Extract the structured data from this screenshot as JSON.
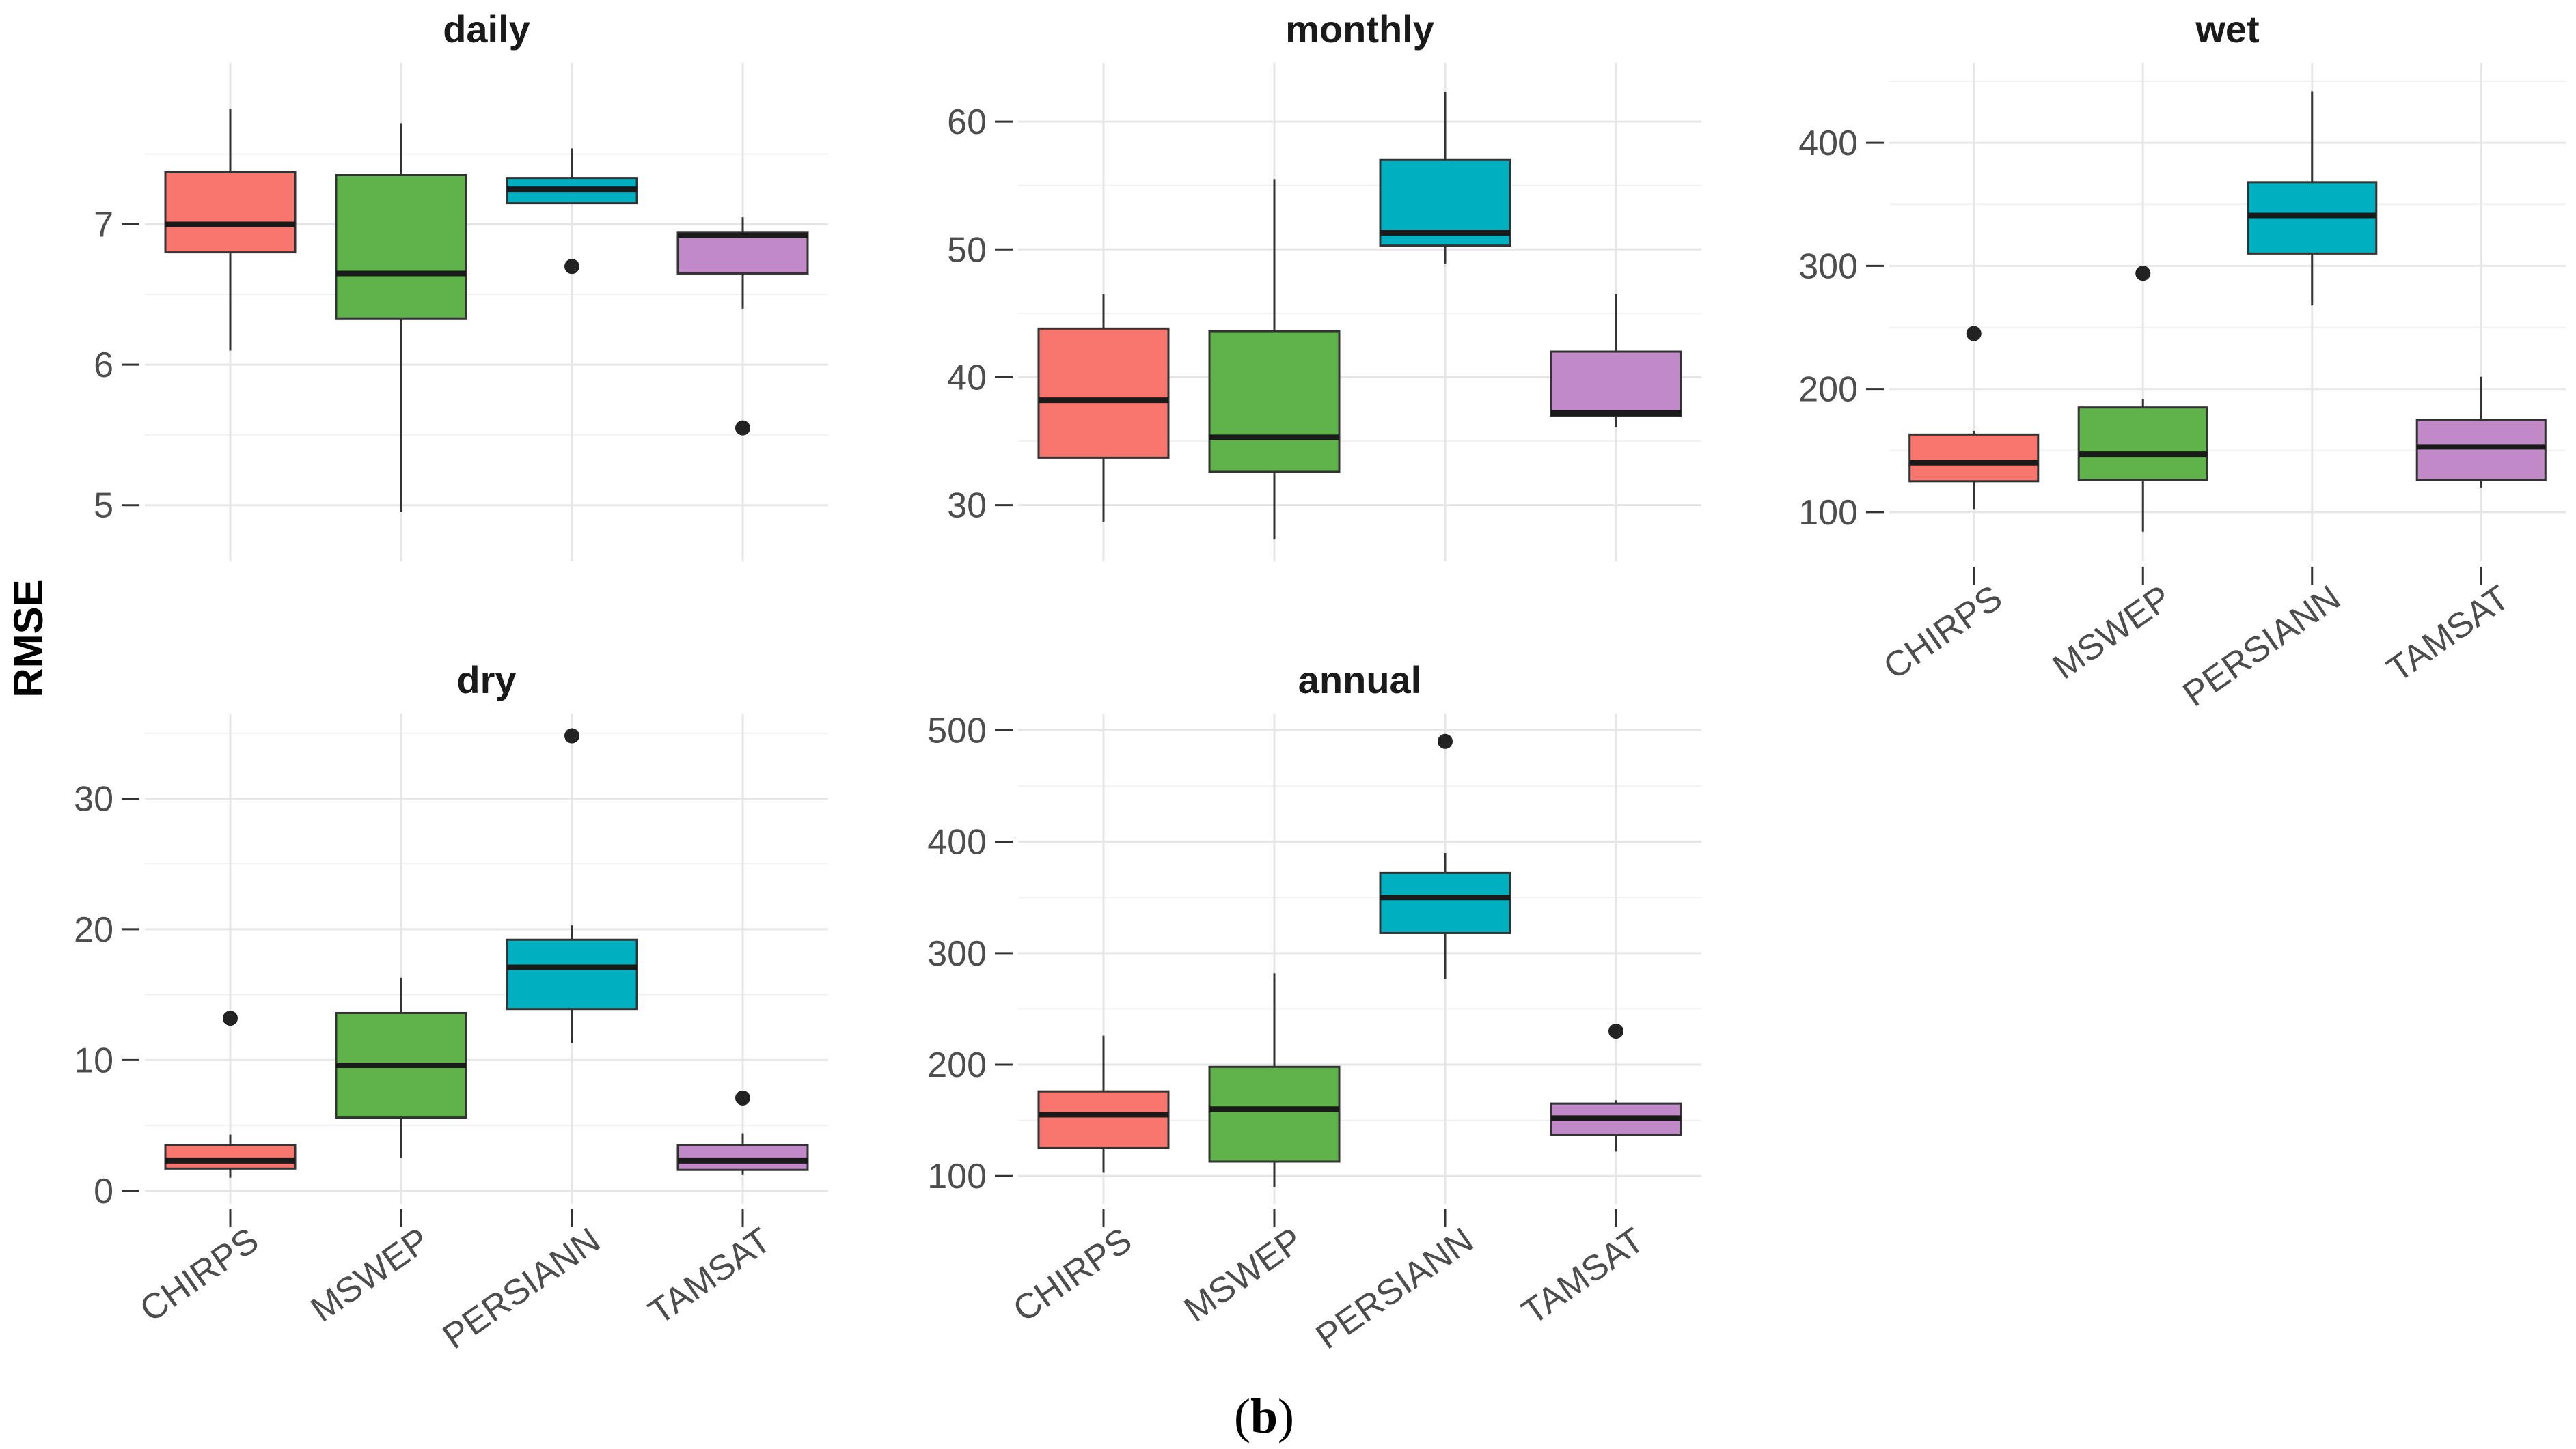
{
  "ylabel": "RMSE",
  "caption": {
    "open": "(",
    "letter": "b",
    "close": ")"
  },
  "chart_data": [
    {
      "type": "boxplot",
      "title": "daily",
      "categories": [
        "CHIRPS",
        "MSWEP",
        "PERSIANN",
        "TAMSAT"
      ],
      "colors": [
        "#F8766D",
        "#5FB34A",
        "#00B0C0",
        "#C189C8"
      ],
      "yticks": [
        5,
        6,
        7
      ],
      "ylim": [
        4.6,
        8.15
      ],
      "show_x_labels": false,
      "boxes": [
        {
          "min": 6.1,
          "q1": 6.8,
          "median": 7.0,
          "q3": 7.37,
          "max": 7.82,
          "outliers": []
        },
        {
          "min": 4.95,
          "q1": 6.33,
          "median": 6.65,
          "q3": 7.35,
          "max": 7.72,
          "outliers": []
        },
        {
          "min": 7.15,
          "q1": 7.15,
          "median": 7.25,
          "q3": 7.33,
          "max": 7.54,
          "outliers": [
            6.7
          ]
        },
        {
          "min": 6.4,
          "q1": 6.65,
          "median": 6.92,
          "q3": 6.94,
          "max": 7.05,
          "outliers": [
            5.55
          ]
        }
      ]
    },
    {
      "type": "boxplot",
      "title": "monthly",
      "categories": [
        "CHIRPS",
        "MSWEP",
        "PERSIANN",
        "TAMSAT"
      ],
      "colors": [
        "#F8766D",
        "#5FB34A",
        "#00B0C0",
        "#C189C8"
      ],
      "yticks": [
        30,
        40,
        50,
        60
      ],
      "ylim": [
        25.6,
        64.6
      ],
      "show_x_labels": false,
      "boxes": [
        {
          "min": 28.7,
          "q1": 33.7,
          "median": 38.2,
          "q3": 43.8,
          "max": 46.5,
          "outliers": []
        },
        {
          "min": 27.3,
          "q1": 32.6,
          "median": 35.3,
          "q3": 43.6,
          "max": 55.5,
          "outliers": []
        },
        {
          "min": 48.9,
          "q1": 50.3,
          "median": 51.3,
          "q3": 57.0,
          "max": 62.3,
          "outliers": []
        },
        {
          "min": 36.1,
          "q1": 37.0,
          "median": 37.2,
          "q3": 42.0,
          "max": 46.5,
          "outliers": []
        }
      ]
    },
    {
      "type": "boxplot",
      "title": "wet",
      "categories": [
        "CHIRPS",
        "MSWEP",
        "PERSIANN",
        "TAMSAT"
      ],
      "colors": [
        "#F8766D",
        "#5FB34A",
        "#00B0C0",
        "#C189C8"
      ],
      "yticks": [
        100,
        200,
        300,
        400
      ],
      "ylim": [
        60,
        465
      ],
      "show_x_labels": true,
      "boxes": [
        {
          "min": 102,
          "q1": 125,
          "median": 140,
          "q3": 163,
          "max": 166,
          "outliers": [
            245
          ]
        },
        {
          "min": 84,
          "q1": 126,
          "median": 147,
          "q3": 185,
          "max": 192,
          "outliers": [
            294
          ]
        },
        {
          "min": 268,
          "q1": 310,
          "median": 341,
          "q3": 368,
          "max": 442,
          "outliers": []
        },
        {
          "min": 120,
          "q1": 126,
          "median": 153,
          "q3": 175,
          "max": 210,
          "outliers": []
        }
      ]
    },
    {
      "type": "boxplot",
      "title": "dry",
      "categories": [
        "CHIRPS",
        "MSWEP",
        "PERSIANN",
        "TAMSAT"
      ],
      "colors": [
        "#F8766D",
        "#5FB34A",
        "#00B0C0",
        "#C189C8"
      ],
      "yticks": [
        0,
        10,
        20,
        30
      ],
      "ylim": [
        -1.0,
        36.5
      ],
      "show_x_labels": true,
      "boxes": [
        {
          "min": 1.0,
          "q1": 1.7,
          "median": 2.3,
          "q3": 3.5,
          "max": 4.3,
          "outliers": [
            13.2
          ]
        },
        {
          "min": 2.5,
          "q1": 5.6,
          "median": 9.6,
          "q3": 13.6,
          "max": 16.3,
          "outliers": []
        },
        {
          "min": 11.3,
          "q1": 13.9,
          "median": 17.1,
          "q3": 19.2,
          "max": 20.3,
          "outliers": [
            34.8
          ]
        },
        {
          "min": 1.2,
          "q1": 1.6,
          "median": 2.3,
          "q3": 3.5,
          "max": 4.4,
          "outliers": [
            7.1
          ]
        }
      ]
    },
    {
      "type": "boxplot",
      "title": "annual",
      "categories": [
        "CHIRPS",
        "MSWEP",
        "PERSIANN",
        "TAMSAT"
      ],
      "colors": [
        "#F8766D",
        "#5FB34A",
        "#00B0C0",
        "#C189C8"
      ],
      "yticks": [
        100,
        200,
        300,
        400,
        500
      ],
      "ylim": [
        75,
        515
      ],
      "show_x_labels": true,
      "boxes": [
        {
          "min": 103,
          "q1": 125,
          "median": 155,
          "q3": 176,
          "max": 226,
          "outliers": []
        },
        {
          "min": 90,
          "q1": 113,
          "median": 160,
          "q3": 198,
          "max": 282,
          "outliers": []
        },
        {
          "min": 277,
          "q1": 318,
          "median": 350,
          "q3": 372,
          "max": 390,
          "outliers": [
            490
          ]
        },
        {
          "min": 122,
          "q1": 137,
          "median": 152,
          "q3": 165,
          "max": 168,
          "outliers": [
            230
          ]
        }
      ]
    }
  ]
}
